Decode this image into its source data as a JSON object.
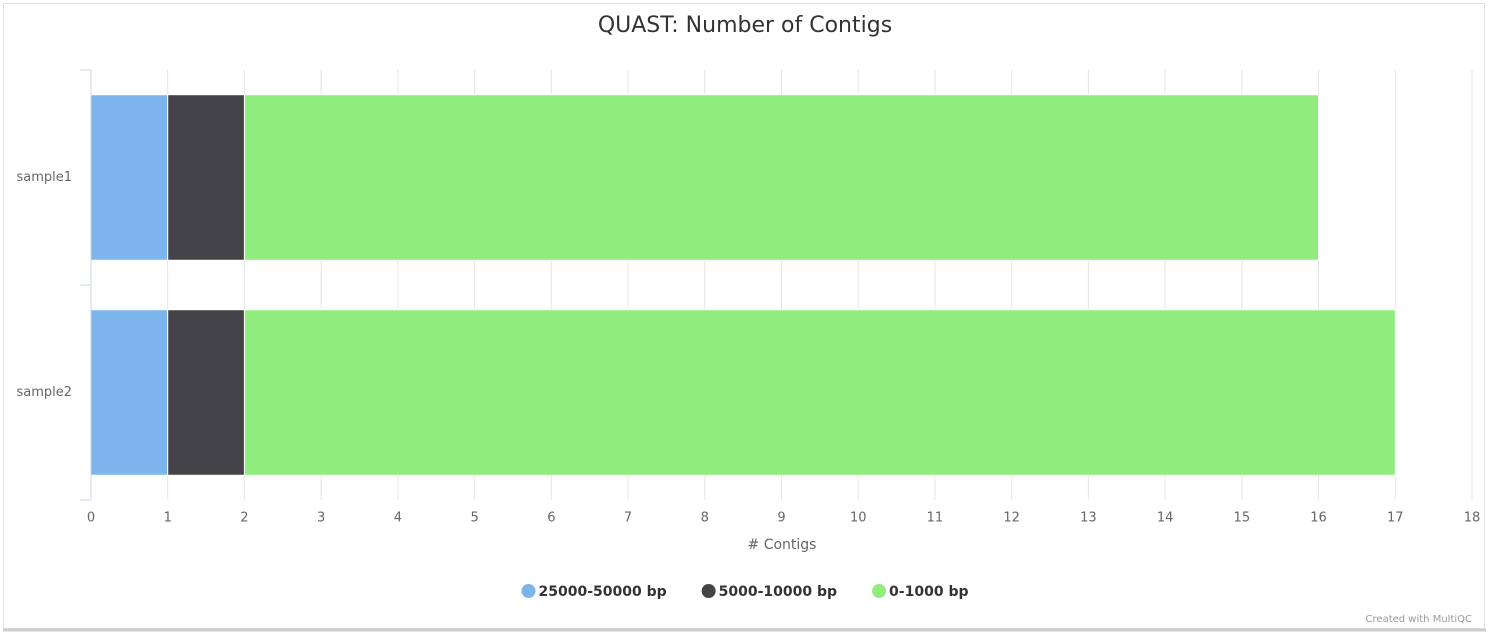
{
  "chart_data": {
    "type": "bar",
    "orientation": "horizontal",
    "stacked": true,
    "title": "QUAST: Number of Contigs",
    "categories": [
      "sample1",
      "sample2"
    ],
    "series": [
      {
        "name": "25000-50000 bp",
        "color": "#7cb5ec",
        "values": [
          1,
          1
        ]
      },
      {
        "name": "5000-10000 bp",
        "color": "#434348",
        "values": [
          1,
          1
        ]
      },
      {
        "name": "0-1000 bp",
        "color": "#90ed7d",
        "values": [
          14,
          15
        ]
      }
    ],
    "xlim": [
      0,
      18
    ],
    "xticks": [
      0,
      1,
      2,
      3,
      4,
      5,
      6,
      7,
      8,
      9,
      10,
      11,
      12,
      13,
      14,
      15,
      16,
      17,
      18
    ],
    "xlabel": "# Contigs",
    "grid": true,
    "legend": "bottom",
    "credit": "Created with MultiQC"
  }
}
